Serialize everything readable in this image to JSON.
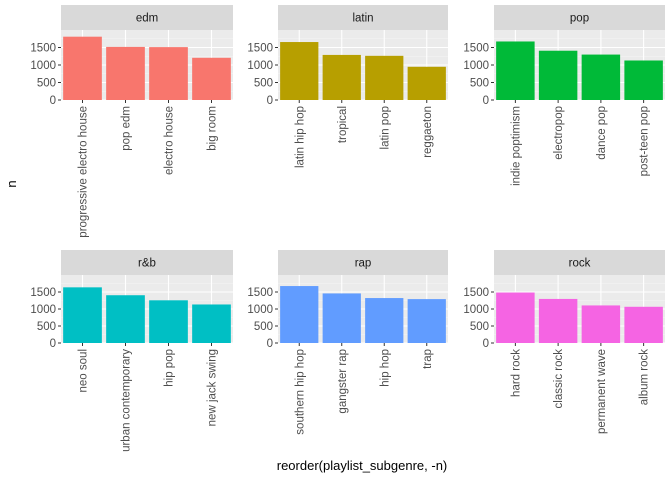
{
  "xlabel": "reorder(playlist_subgenre, -n)",
  "ylabel": "n",
  "colors": {
    "panel_bg": "#EBEBEB",
    "strip_bg": "#D9D9D9",
    "grid_major": "#FFFFFF",
    "grid_minor": "#F5F5F5",
    "text_axis": "#4D4D4D",
    "text_strip": "#1A1A1A",
    "tick": "#333333"
  },
  "chart_data": [
    {
      "type": "bar",
      "title": "edm",
      "color": "#F8766D",
      "ylim": [
        0,
        2000
      ],
      "yticks": [
        0,
        500,
        1000,
        1500
      ],
      "categories": [
        "progressive electro house",
        "pop edm",
        "electro house",
        "big room"
      ],
      "values": [
        1809,
        1517,
        1511,
        1206
      ]
    },
    {
      "type": "bar",
      "title": "latin",
      "color": "#B79F00",
      "ylim": [
        0,
        2000
      ],
      "yticks": [
        0,
        500,
        1000,
        1500
      ],
      "categories": [
        "latin hip hop",
        "tropical",
        "latin pop",
        "reggaeton"
      ],
      "values": [
        1656,
        1288,
        1262,
        949
      ]
    },
    {
      "type": "bar",
      "title": "pop",
      "color": "#00BA38",
      "ylim": [
        0,
        2000
      ],
      "yticks": [
        0,
        500,
        1000,
        1500
      ],
      "categories": [
        "indie poptimism",
        "electropop",
        "dance pop",
        "post-teen pop"
      ],
      "values": [
        1672,
        1408,
        1298,
        1129
      ]
    },
    {
      "type": "bar",
      "title": "r&b",
      "color": "#00BFC4",
      "ylim": [
        0,
        2000
      ],
      "yticks": [
        0,
        500,
        1000,
        1500
      ],
      "categories": [
        "neo soul",
        "urban contemporary",
        "hip pop",
        "new jack swing"
      ],
      "values": [
        1637,
        1405,
        1256,
        1133
      ]
    },
    {
      "type": "bar",
      "title": "rap",
      "color": "#619CFF",
      "ylim": [
        0,
        2000
      ],
      "yticks": [
        0,
        500,
        1000,
        1500
      ],
      "categories": [
        "southern hip hop",
        "gangster rap",
        "hip hop",
        "trap"
      ],
      "values": [
        1675,
        1458,
        1322,
        1291
      ]
    },
    {
      "type": "bar",
      "title": "rock",
      "color": "#F564E3",
      "ylim": [
        0,
        2000
      ],
      "yticks": [
        0,
        500,
        1000,
        1500
      ],
      "categories": [
        "hard rock",
        "classic rock",
        "permanent wave",
        "album rock"
      ],
      "values": [
        1485,
        1296,
        1105,
        1065
      ]
    }
  ]
}
